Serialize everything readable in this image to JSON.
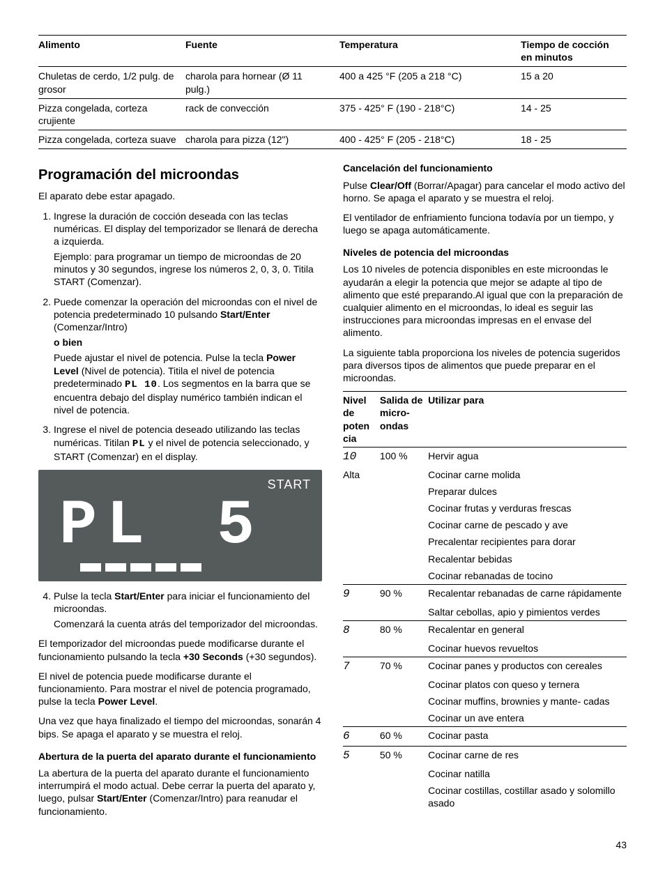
{
  "food_table": {
    "headers": [
      "Alimento",
      "Fuente",
      "Temperatura",
      "Tiempo de cocción en minutos"
    ],
    "rows": [
      [
        "Chuletas de cerdo, 1/2 pulg. de grosor",
        "charola para hornear (Ø 11 pulg.)",
        "400 a 425 °F (205 a 218 °C)",
        "15 a 20"
      ],
      [
        "Pizza congelada, corteza crujiente",
        "rack de convección",
        "375 - 425° F (190 - 218°C)",
        "14 - 25"
      ],
      [
        "Pizza congelada, corteza suave",
        "charola para pizza (12\")",
        "400 - 425° F (205 - 218°C)",
        "18 - 25"
      ]
    ]
  },
  "left": {
    "h2": "Programación del microondas",
    "intro": "El aparato debe estar apagado.",
    "step1a": "Ingrese la duración de cocción deseada con las teclas numéricas. El display del temporizador se llenará de derecha a izquierda.",
    "step1b": "Ejemplo: para programar un tiempo de microondas de 20 minutos y 30 segundos, ingrese los números 2, 0, 3, 0. Titila START (Comenzar).",
    "step2a_pre": "Puede comenzar la operación del microondas con el nivel de potencia predeterminado 10 pulsando ",
    "step2a_bold": "Start/Enter",
    "step2a_post": " (Comenzar/Intro)",
    "step2_or": "o bien",
    "step2b_pre": "Puede ajustar el nivel de potencia. Pulse la tecla ",
    "step2b_bold": "Power Level",
    "step2b_mid": " (Nivel de potencia). Titila el nivel de potencia predeterminado ",
    "step2b_plglyph": "PL 10",
    "step2b_post": ". Los segmentos en la barra que se encuentra debajo del display numérico también indican el nivel de potencia.",
    "step3_pre": "Ingrese el nivel de potencia deseado utilizando las teclas numéricas. Titilan ",
    "step3_glyph": "PL",
    "step3_post": " y el nivel de potencia seleccionado, y START (Comenzar) en el display.",
    "display": {
      "start": "START",
      "glyph_pl": "PL",
      "glyph_val": "5",
      "bars": 5
    },
    "step4a_pre": "Pulse la tecla ",
    "step4a_bold": "Start/Enter",
    "step4a_post": " para iniciar el funcionamiento del microondas.",
    "step4b": "Comenzará la cuenta atrás del temporizador del microondas.",
    "p_after1_pre": "El temporizador del microondas puede modificarse durante el funcionamiento pulsando la tecla ",
    "p_after1_bold": "+30 Seconds",
    "p_after1_post": " (+30 segundos).",
    "p_after2_pre": "El nivel de potencia puede modificarse durante el funcionamiento. Para mostrar el nivel de potencia programado, pulse la tecla ",
    "p_after2_bold": "Power Level",
    "p_after2_post": ".",
    "p_after3": "Una vez que haya finalizado el tiempo del microondas, sonarán 4 bips. Se apaga el aparato y se muestra el reloj.",
    "h3_door": "Abertura de la puerta del aparato durante el funcionamiento",
    "p_door_pre": "La abertura de la puerta del aparato durante el funcionamiento interrumpirá el modo actual. Debe cerrar la puerta del aparato y, luego, pulsar ",
    "p_door_bold": "Start/Enter",
    "p_door_post": " (Comenzar/Intro) para reanudar el funcionamiento."
  },
  "right": {
    "h3_cancel": "Cancelación del funcionamiento",
    "p_cancel_pre": "Pulse ",
    "p_cancel_bold": "Clear/Off",
    "p_cancel_post": "  (Borrar/Apagar) para cancelar el modo activo del horno. Se apaga el aparato y se muestra el reloj.",
    "p_cancel2": "El ventilador de enfriamiento funciona todavía por un tiempo, y luego se apaga automáticamente.",
    "h3_levels": "Niveles de potencia del microondas",
    "p_levels1": "Los 10 niveles de potencia disponibles en este microondas le ayudarán a elegir la potencia que mejor se adapte al tipo de alimento que esté preparando.Al igual que con la preparación de cualquier alimento en el microondas, lo ideal es seguir las instrucciones para microondas impresas en el envase del alimento.",
    "p_levels2": "La siguiente tabla proporciona los niveles de potencia sugeridos para diversos tipos de alimentos que puede preparar en el microondas."
  },
  "power_table": {
    "headers": [
      "Nivel de poten cia",
      "Salida de micro- ondas",
      "Utilizar para"
    ],
    "groups": [
      {
        "level_glyph": "10",
        "level_extra": "Alta",
        "output": "100 %",
        "uses": [
          "Hervir agua",
          "Cocinar carne molida",
          "Preparar dulces",
          "Cocinar frutas y verduras frescas",
          "Cocinar carne de pescado y ave",
          "Precalentar recipientes para dorar",
          "Recalentar bebidas",
          "Cocinar rebanadas de tocino"
        ]
      },
      {
        "level_glyph": "9",
        "output": "90 %",
        "uses": [
          "Recalentar rebanadas de carne rápidamente",
          "Saltar cebollas, apio y pimientos verdes"
        ]
      },
      {
        "level_glyph": "8",
        "output": "80 %",
        "uses": [
          "Recalentar en general",
          "Cocinar huevos revueltos"
        ]
      },
      {
        "level_glyph": "7",
        "output": "70 %",
        "uses": [
          "Cocinar panes y productos con cereales",
          "Cocinar platos con queso y ternera",
          "Cocinar muffins, brownies y mante- cadas",
          "Cocinar un ave entera"
        ]
      },
      {
        "level_glyph": "6",
        "output": "60 %",
        "uses": [
          "Cocinar pasta"
        ]
      },
      {
        "level_glyph": "5",
        "output": "50 %",
        "uses": [
          "Cocinar carne de res",
          "Cocinar natilla",
          "Cocinar costillas, costillar asado y solomillo asado"
        ]
      }
    ]
  },
  "page_number": "43"
}
